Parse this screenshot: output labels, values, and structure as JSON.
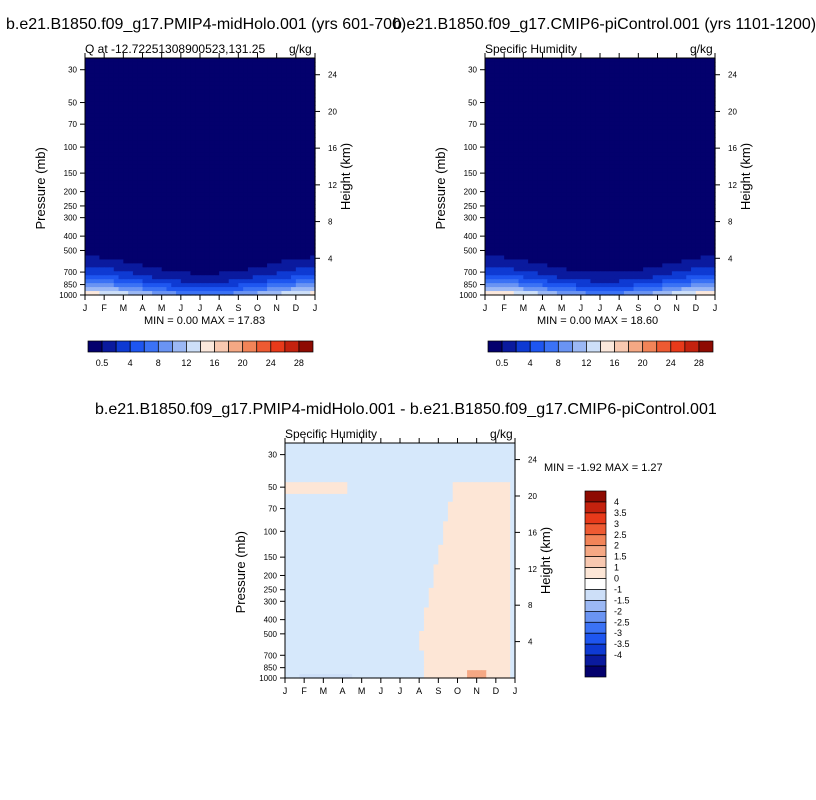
{
  "panels": [
    {
      "title": "b.e21.B1850.f09_g17.PMIP4-midHolo.001 (yrs 601-700)",
      "left_label": "Q at -12.72251308900523,131.25",
      "right_label": "g/kg",
      "stats": "MIN =   0.00 MAX =  17.83"
    },
    {
      "title": "b.e21.B1850.f09_g17.CMIP6-piControl.001 (yrs 1101-1200)",
      "left_label": "Specific Humidity",
      "right_label": "g/kg",
      "stats": "MIN =   0.00 MAX =  18.60"
    },
    {
      "title": "b.e21.B1850.f09_g17.PMIP4-midHolo.001 - b.e21.B1850.f09_g17.CMIP6-piControl.001",
      "left_label": "Specific Humidity",
      "right_label": "g/kg",
      "stats": "MIN =  -1.92 MAX =   1.27"
    }
  ],
  "chart_data": [
    {
      "type": "heatmap",
      "title": "b.e21.B1850.f09_g17.PMIP4-midHolo.001 (yrs 601-700)",
      "ylabel": "Pressure (mb)",
      "ylabel_right": "Height (km)",
      "x_categories": [
        "J",
        "F",
        "M",
        "A",
        "M",
        "J",
        "J",
        "A",
        "S",
        "O",
        "N",
        "D",
        "J"
      ],
      "y_ticks": [
        30,
        50,
        70,
        100,
        150,
        200,
        250,
        300,
        400,
        500,
        700,
        850,
        1000
      ],
      "y_right_ticks": [
        4,
        8,
        12,
        16,
        20,
        24
      ],
      "y_scale": "log",
      "ylim": [
        1000,
        25
      ],
      "colorbar_labels": [
        "0.5",
        "4",
        "8",
        "12",
        "16",
        "20",
        "24",
        "28"
      ],
      "colorbar_colors": [
        "#03006d",
        "#0a1a9e",
        "#0e3ad3",
        "#1e56f0",
        "#3b72f5",
        "#6a94f3",
        "#9bb8f4",
        "#cddff8",
        "#fbe8dc",
        "#f8c8b0",
        "#f5a884",
        "#f28458",
        "#ee5a32",
        "#e83a1a",
        "#c4220e",
        "#8e0b02"
      ],
      "min": 0.0,
      "max": 17.83
    },
    {
      "type": "heatmap",
      "title": "b.e21.B1850.f09_g17.CMIP6-piControl.001 (yrs 1101-1200)",
      "ylabel": "Pressure (mb)",
      "ylabel_right": "Height (km)",
      "x_categories": [
        "J",
        "F",
        "M",
        "A",
        "M",
        "J",
        "J",
        "A",
        "S",
        "O",
        "N",
        "D",
        "J"
      ],
      "y_ticks": [
        30,
        50,
        70,
        100,
        150,
        200,
        250,
        300,
        400,
        500,
        700,
        850,
        1000
      ],
      "y_right_ticks": [
        4,
        8,
        12,
        16,
        20,
        24
      ],
      "y_scale": "log",
      "ylim": [
        1000,
        25
      ],
      "colorbar_labels": [
        "0.5",
        "4",
        "8",
        "12",
        "16",
        "20",
        "24",
        "28"
      ],
      "colorbar_colors": [
        "#03006d",
        "#0a1a9e",
        "#0e3ad3",
        "#1e56f0",
        "#3b72f5",
        "#6a94f3",
        "#9bb8f4",
        "#cddff8",
        "#fbe8dc",
        "#f8c8b0",
        "#f5a884",
        "#f28458",
        "#ee5a32",
        "#e83a1a",
        "#c4220e",
        "#8e0b02"
      ],
      "min": 0.0,
      "max": 18.6
    },
    {
      "type": "heatmap",
      "title": "b.e21.B1850.f09_g17.PMIP4-midHolo.001 - b.e21.B1850.f09_g17.CMIP6-piControl.001",
      "ylabel": "Pressure (mb)",
      "ylabel_right": "Height (km)",
      "x_categories": [
        "J",
        "F",
        "M",
        "A",
        "M",
        "J",
        "J",
        "A",
        "S",
        "O",
        "N",
        "D",
        "J"
      ],
      "y_ticks": [
        30,
        50,
        70,
        100,
        150,
        200,
        250,
        300,
        400,
        500,
        700,
        850,
        1000
      ],
      "y_right_ticks": [
        4,
        8,
        12,
        16,
        20,
        24
      ],
      "y_scale": "log",
      "ylim": [
        1000,
        25
      ],
      "colorbar_labels": [
        "4",
        "3.5",
        "3",
        "2.5",
        "2",
        "1.5",
        "1",
        "0",
        "-1",
        "-1.5",
        "-2",
        "-2.5",
        "-3",
        "-3.5",
        "-4"
      ],
      "colorbar_colors": [
        "#8e0b02",
        "#c4220e",
        "#e83a1a",
        "#ee5a32",
        "#f28458",
        "#f5a884",
        "#f8c8b0",
        "#fde6d6",
        "#ffffff",
        "#cddff8",
        "#9bb8f4",
        "#6a94f3",
        "#3b72f5",
        "#1e56f0",
        "#0e3ad3",
        "#0a1a9e",
        "#03006d"
      ],
      "min": -1.92,
      "max": 1.27
    }
  ]
}
